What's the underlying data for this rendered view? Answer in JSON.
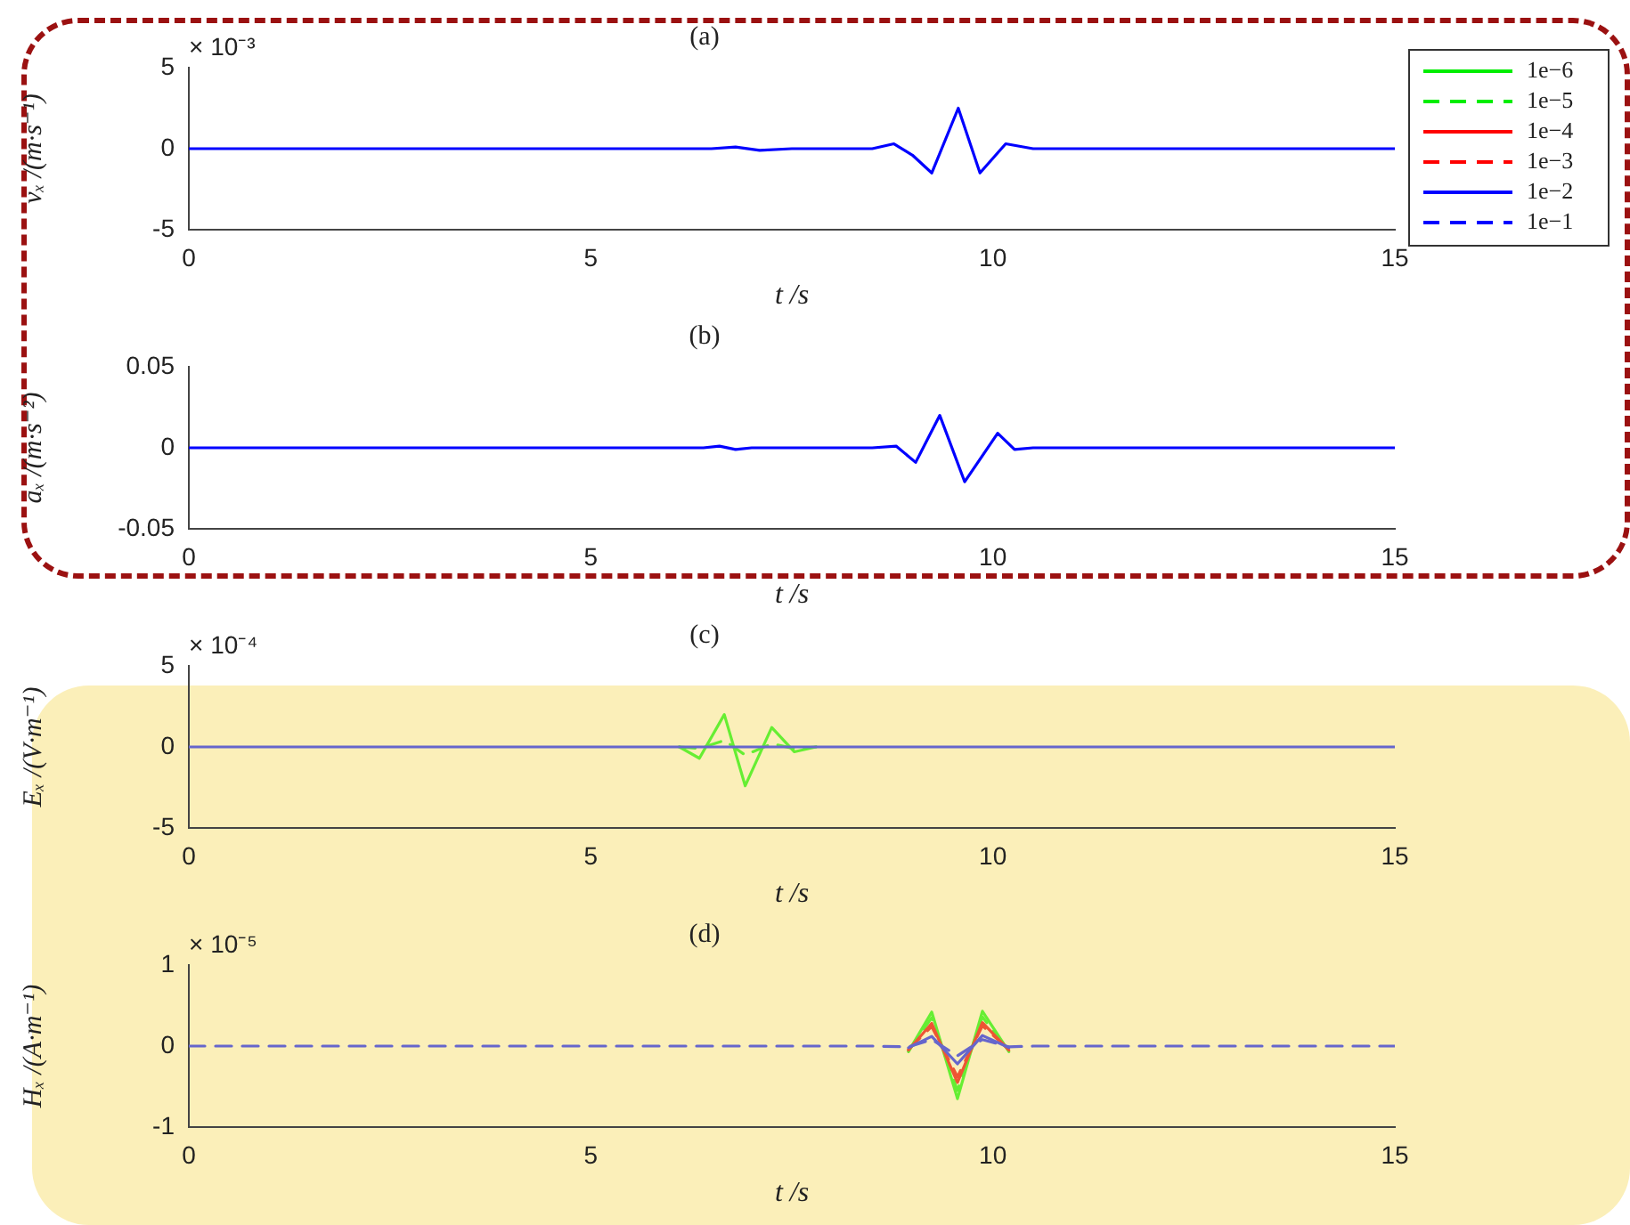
{
  "chart_data": [
    {
      "type": "line",
      "title": "(a)",
      "xlabel": "t /s",
      "ylabel": "vₓ /(m·s⁻¹)",
      "annotations": [
        "× 10⁻³"
      ],
      "xlim": [
        0,
        15
      ],
      "xticks": [
        0,
        5,
        10,
        15
      ],
      "ylim": [
        -5,
        5
      ],
      "yticks": [
        -5,
        0,
        5
      ],
      "grid": false,
      "legend": "right",
      "marker": "none",
      "x": [
        0,
        6,
        6.5,
        6.8,
        7.1,
        7.5,
        8.5,
        8.77,
        9.0,
        9.24,
        9.57,
        9.84,
        10.16,
        10.5,
        15
      ],
      "series": [
        {
          "name": "1e−6",
          "color": "#00ee00",
          "line_style": "solid",
          "values": [
            null,
            null,
            null,
            null,
            null,
            null,
            null,
            null,
            null,
            null,
            null,
            null,
            null,
            null,
            null
          ]
        },
        {
          "name": "1e−5",
          "color": "#00ee00",
          "line_style": "dashed",
          "values": [
            null,
            null,
            null,
            null,
            null,
            null,
            null,
            null,
            null,
            null,
            null,
            null,
            null,
            null,
            null
          ]
        },
        {
          "name": "1e−4",
          "color": "#ff0000",
          "line_style": "solid",
          "values": [
            null,
            null,
            null,
            null,
            null,
            null,
            null,
            null,
            null,
            null,
            null,
            null,
            null,
            null,
            null
          ]
        },
        {
          "name": "1e−3",
          "color": "#ff0000",
          "line_style": "dashed",
          "values": [
            null,
            null,
            null,
            null,
            null,
            null,
            null,
            null,
            null,
            null,
            null,
            null,
            null,
            null,
            null
          ]
        },
        {
          "name": "1e−2",
          "color": "#0000ff",
          "line_style": "solid",
          "values": [
            0,
            0,
            0,
            0.1,
            -0.1,
            0,
            0,
            0.3,
            -0.4,
            -1.5,
            2.5,
            -1.5,
            0.3,
            0,
            0
          ]
        },
        {
          "name": "1e−1",
          "color": "#0000ff",
          "line_style": "dashed",
          "values": [
            null,
            null,
            null,
            null,
            null,
            null,
            null,
            null,
            null,
            null,
            null,
            null,
            null,
            null,
            null
          ]
        }
      ]
    },
    {
      "type": "line",
      "title": "(b)",
      "xlabel": "t /s",
      "ylabel": "aₓ /(m·s⁻²)",
      "xlim": [
        0,
        15
      ],
      "xticks": [
        0,
        5,
        10,
        15
      ],
      "ylim": [
        -0.05,
        0.05
      ],
      "yticks": [
        -0.05,
        0,
        0.05
      ],
      "grid": false,
      "legend": false,
      "marker": "none",
      "x": [
        0,
        6,
        6.4,
        6.6,
        6.8,
        7.0,
        8.5,
        8.8,
        9.04,
        9.34,
        9.65,
        10.06,
        10.27,
        10.5,
        15
      ],
      "series": [
        {
          "color": "#0000ff",
          "line_style": "solid",
          "values": [
            0,
            0,
            0,
            0.001,
            -0.001,
            0,
            0,
            0.001,
            -0.009,
            0.02,
            -0.021,
            0.009,
            -0.001,
            0,
            0
          ]
        }
      ]
    },
    {
      "type": "line",
      "title": "(c)",
      "xlabel": "t /s",
      "ylabel": "Eₓ /(V·m⁻¹)",
      "annotations": [
        "× 10⁻⁴"
      ],
      "xlim": [
        0,
        15
      ],
      "xticks": [
        0,
        5,
        10,
        15
      ],
      "ylim": [
        -5,
        5
      ],
      "yticks": [
        -5,
        0,
        5
      ],
      "grid": false,
      "legend": false,
      "marker": "none",
      "x": [
        0,
        6.1,
        6.35,
        6.66,
        6.92,
        7.25,
        7.53,
        7.8,
        15
      ],
      "series": [
        {
          "color": "#66ee33",
          "line_style": "solid",
          "values": [
            null,
            0,
            -0.7,
            2.0,
            -2.4,
            1.2,
            -0.3,
            0,
            null
          ]
        },
        {
          "color": "#66ee33",
          "line_style": "dashed",
          "values": [
            null,
            0,
            -0.1,
            0.4,
            -0.5,
            0.2,
            -0.1,
            0,
            null
          ]
        },
        {
          "color": "#6666cc",
          "line_style": "solid",
          "values": [
            0,
            0,
            0,
            0,
            0,
            0,
            0,
            0,
            0
          ]
        }
      ]
    },
    {
      "type": "line",
      "title": "(d)",
      "xlabel": "t /s",
      "ylabel": "Hₓ /(A·m⁻¹)",
      "annotations": [
        "× 10⁻⁵"
      ],
      "xlim": [
        0,
        15
      ],
      "xticks": [
        0,
        5,
        10,
        15
      ],
      "ylim": [
        -1,
        1
      ],
      "yticks": [
        -1,
        0,
        1
      ],
      "grid": false,
      "legend": false,
      "marker": "none",
      "x": [
        0,
        8.5,
        8.95,
        9.24,
        9.56,
        9.87,
        10.2,
        10.5,
        15
      ],
      "series": [
        {
          "color": "#66ee33",
          "line_style": "solid",
          "values": [
            null,
            null,
            -0.07,
            0.42,
            -0.65,
            0.43,
            -0.07,
            null,
            null
          ]
        },
        {
          "color": "#66ee33",
          "line_style": "dashed",
          "values": [
            null,
            null,
            -0.06,
            0.35,
            -0.55,
            0.36,
            -0.06,
            null,
            null
          ]
        },
        {
          "color": "#ee5533",
          "line_style": "solid",
          "values": [
            null,
            null,
            -0.05,
            0.28,
            -0.45,
            0.29,
            -0.05,
            null,
            null
          ]
        },
        {
          "color": "#ee5533",
          "line_style": "dashed",
          "values": [
            null,
            null,
            -0.04,
            0.24,
            -0.38,
            0.25,
            -0.04,
            null,
            null
          ]
        },
        {
          "color": "#6666cc",
          "line_style": "solid",
          "values": [
            null,
            null,
            -0.02,
            0.12,
            -0.22,
            0.13,
            -0.02,
            null,
            null
          ]
        },
        {
          "color": "#6666cc",
          "line_style": "dashed",
          "values": [
            0,
            0,
            -0.01,
            0.08,
            -0.12,
            0.08,
            -0.01,
            0,
            0
          ]
        }
      ]
    }
  ]
}
